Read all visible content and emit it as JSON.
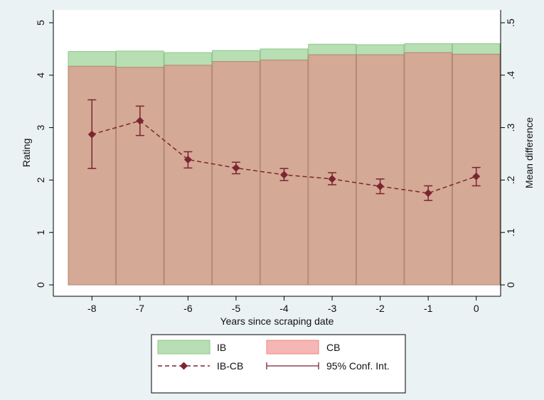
{
  "chart_data": {
    "type": "bar",
    "xlabel": "Years since scraping date",
    "ylabel": "Rating",
    "y2label": "Mean difference",
    "x": [
      -8,
      -7,
      -6,
      -5,
      -4,
      -3,
      -2,
      -1,
      0
    ],
    "x_tick_labels": [
      "-8",
      "-7",
      "-6",
      "-5",
      "-4",
      "-3",
      "-2",
      "-1",
      "0"
    ],
    "ylim": [
      0,
      5
    ],
    "y_ticks": [
      0,
      1,
      2,
      3,
      4,
      5
    ],
    "y_tick_labels": [
      "0",
      "1",
      "2",
      "3",
      "4",
      "5"
    ],
    "y2lim": [
      0,
      0.5
    ],
    "y2_ticks": [
      0,
      0.1,
      0.2,
      0.3,
      0.4,
      0.5
    ],
    "y2_tick_labels": [
      "0",
      ".1",
      ".2",
      ".3",
      ".4",
      ".5"
    ],
    "grid": false,
    "legend_position": "bottom",
    "series": [
      {
        "name": "IB",
        "kind": "bar",
        "axis": "left",
        "color": "#b7dfb3",
        "values": [
          4.45,
          4.46,
          4.43,
          4.47,
          4.5,
          4.59,
          4.58,
          4.6,
          4.6
        ]
      },
      {
        "name": "CB",
        "kind": "bar",
        "axis": "left",
        "color": "#d4a996",
        "values": [
          4.17,
          4.15,
          4.19,
          4.26,
          4.29,
          4.39,
          4.39,
          4.43,
          4.4
        ]
      },
      {
        "name": "IB-CB",
        "kind": "line",
        "axis": "right",
        "color": "#7b2530",
        "values": [
          0.287,
          0.313,
          0.239,
          0.223,
          0.21,
          0.202,
          0.188,
          0.175,
          0.207
        ]
      },
      {
        "name": "95% Conf. Int.",
        "kind": "errorbar",
        "axis": "right",
        "color": "#7b2530",
        "low": [
          0.222,
          0.285,
          0.223,
          0.212,
          0.199,
          0.191,
          0.174,
          0.161,
          0.189
        ],
        "high": [
          0.353,
          0.341,
          0.254,
          0.234,
          0.222,
          0.214,
          0.202,
          0.189,
          0.224
        ]
      }
    ]
  }
}
